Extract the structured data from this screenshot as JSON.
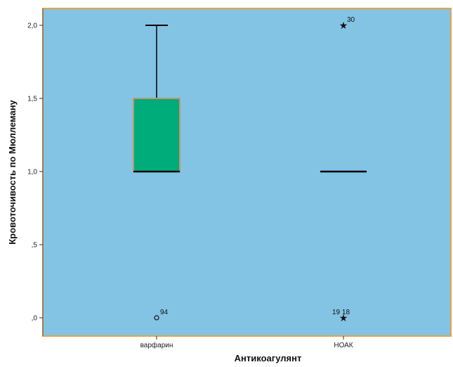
{
  "chart_data": {
    "type": "boxplot",
    "xlabel": "Антикоагулянт",
    "ylabel": "Кровоточивость по Мюллеману",
    "ylim": [
      -0.05,
      2.1
    ],
    "yticks": [
      {
        "value": 0.0,
        "label": ",0"
      },
      {
        "value": 0.5,
        "label": ",5"
      },
      {
        "value": 1.0,
        "label": "1,0"
      },
      {
        "value": 1.5,
        "label": "1,5"
      },
      {
        "value": 2.0,
        "label": "2,0"
      }
    ],
    "categories": [
      "варфарин",
      "НОАК"
    ],
    "boxes": [
      {
        "category": "варфарин",
        "q1": 1.0,
        "median": 1.0,
        "q3": 1.5,
        "whisker_low": 1.0,
        "whisker_high": 2.0,
        "outliers": [
          {
            "value": 0.0,
            "marker": "circle",
            "label": "94"
          }
        ]
      },
      {
        "category": "НОАК",
        "q1": 1.0,
        "median": 1.0,
        "q3": 1.0,
        "whisker_low": 1.0,
        "whisker_high": 1.0,
        "outliers": [
          {
            "value": 2.0,
            "marker": "star",
            "label": "30"
          },
          {
            "value": 0.0,
            "marker": "star",
            "label": "19 18"
          }
        ]
      }
    ],
    "colors": {
      "plot_background": "#83c3e4",
      "plot_border": "#e8a24a",
      "box_fill": "#00ad7a",
      "box_border": "#c0966a",
      "median_line": "#000000",
      "whisker": "#000000"
    },
    "grid": false,
    "legend": "none"
  }
}
